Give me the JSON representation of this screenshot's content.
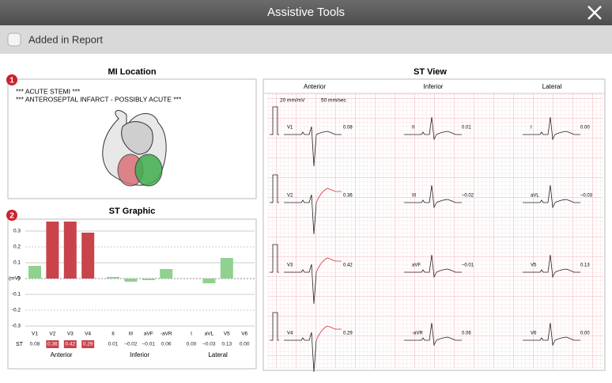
{
  "header": {
    "title": "Assistive Tools"
  },
  "report_checkbox": {
    "label": "Added in Report",
    "checked": false
  },
  "mi_location": {
    "title": "MI Location",
    "marker": "1",
    "lines": [
      "*** ACUTE STEMI ***",
      "*** ANTEROSEPTAL INFARCT - POSSIBLY ACUTE ***"
    ]
  },
  "st_view": {
    "title": "ST View",
    "gain": "20 mm/mV",
    "speed": "50 mm/sec"
  },
  "chart_data": {
    "type": "bar",
    "title": "ST Graphic",
    "marker": "2",
    "y_label": "(mV)",
    "row_label": "ST",
    "groups": [
      "Anterior",
      "Inferior",
      "Lateral"
    ],
    "categories": [
      "V1",
      "V2",
      "V3",
      "V4",
      "II",
      "III",
      "aVF",
      "-aVR",
      "I",
      "aVL",
      "V5",
      "V6"
    ],
    "values": [
      0.08,
      0.36,
      0.42,
      0.29,
      0.01,
      -0.02,
      -0.01,
      0.06,
      0,
      -0.03,
      0.13,
      0
    ],
    "value_labels": [
      "0.08",
      "0.36",
      "0.42",
      "0.29",
      "0.01",
      "–0.02",
      "–0.01",
      "0.06",
      "0.00",
      "–0.03",
      "0.13",
      "0.00"
    ],
    "colors": [
      "#8fd18f",
      "#c9434b",
      "#c9434b",
      "#c9434b",
      "#8fd18f",
      "#8fd18f",
      "#8fd18f",
      "#8fd18f",
      "#8fd18f",
      "#8fd18f",
      "#8fd18f",
      "#8fd18f"
    ],
    "ylim": [
      -0.33,
      0.36
    ],
    "yticks": [
      0.3,
      0.2,
      0.1,
      0,
      -0.1,
      -0.2,
      -0.3
    ],
    "grid": true
  }
}
